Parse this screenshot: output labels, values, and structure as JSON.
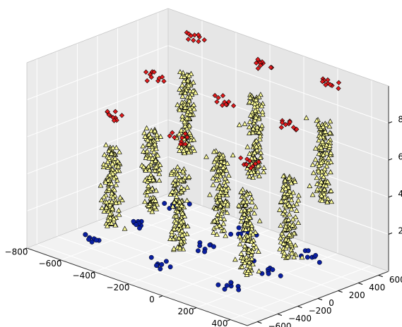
{
  "chart_data": {
    "type": "scatter",
    "projection": "3d",
    "title": "",
    "xlabel": "",
    "ylabel": "",
    "zlabel": "",
    "xlim": [
      -800,
      500
    ],
    "ylim": [
      -700,
      700
    ],
    "zlim": [
      0,
      1000
    ],
    "x_ticks": [
      "−800",
      "−600",
      "−400",
      "−200",
      "0",
      "200",
      "400"
    ],
    "y_ticks": [
      "−600",
      "−400",
      "−200",
      "0",
      "200",
      "400",
      "600"
    ],
    "z_ticks": [
      "200",
      "400",
      "600",
      "800"
    ],
    "x_tick_values": [
      -800,
      -600,
      -400,
      -200,
      0,
      200,
      400
    ],
    "y_tick_values": [
      -600,
      -400,
      -200,
      0,
      200,
      400,
      600
    ],
    "z_tick_values": [
      200,
      400,
      600,
      800
    ],
    "grid": true,
    "series_styles": [
      {
        "marker": "circle",
        "color": "#0a1fa0",
        "stroke": "#000000"
      },
      {
        "marker": "triangle",
        "color": "#ffff99",
        "stroke": "#000000"
      },
      {
        "marker": "diamond",
        "color": "#e41a1c",
        "stroke": "#000000"
      }
    ],
    "clusters": [
      {
        "series": 0,
        "x": -550,
        "y": -450,
        "z": 80,
        "spread_xy": 50,
        "z_span": 20,
        "count": 8
      },
      {
        "series": 0,
        "x": -150,
        "y": -450,
        "z": 80,
        "spread_xy": 50,
        "z_span": 20,
        "count": 8
      },
      {
        "series": 0,
        "x": 250,
        "y": -450,
        "z": 80,
        "spread_xy": 50,
        "z_span": 20,
        "count": 8
      },
      {
        "series": 0,
        "x": -550,
        "y": -50,
        "z": 80,
        "spread_xy": 50,
        "z_span": 20,
        "count": 8
      },
      {
        "series": 0,
        "x": -150,
        "y": -50,
        "z": 80,
        "spread_xy": 50,
        "z_span": 20,
        "count": 8
      },
      {
        "series": 0,
        "x": 250,
        "y": -50,
        "z": 80,
        "spread_xy": 50,
        "z_span": 20,
        "count": 8
      },
      {
        "series": 0,
        "x": -550,
        "y": 350,
        "z": 80,
        "spread_xy": 50,
        "z_span": 20,
        "count": 8
      },
      {
        "series": 0,
        "x": -150,
        "y": 350,
        "z": 80,
        "spread_xy": 50,
        "z_span": 20,
        "count": 8
      },
      {
        "series": 0,
        "x": 250,
        "y": 350,
        "z": 80,
        "spread_xy": 50,
        "z_span": 20,
        "count": 8
      },
      {
        "series": 1,
        "x": -550,
        "y": -280,
        "z": 330,
        "spread_xy": 35,
        "z_span": 220,
        "count": 130
      },
      {
        "series": 1,
        "x": -150,
        "y": -280,
        "z": 330,
        "spread_xy": 35,
        "z_span": 220,
        "count": 130
      },
      {
        "series": 1,
        "x": 250,
        "y": -280,
        "z": 330,
        "spread_xy": 35,
        "z_span": 220,
        "count": 130
      },
      {
        "series": 1,
        "x": -550,
        "y": 120,
        "z": 330,
        "spread_xy": 35,
        "z_span": 220,
        "count": 130
      },
      {
        "series": 1,
        "x": -150,
        "y": 120,
        "z": 330,
        "spread_xy": 35,
        "z_span": 220,
        "count": 130
      },
      {
        "series": 1,
        "x": 250,
        "y": 120,
        "z": 330,
        "spread_xy": 35,
        "z_span": 220,
        "count": 130
      },
      {
        "series": 1,
        "x": -550,
        "y": 470,
        "z": 560,
        "spread_xy": 35,
        "z_span": 220,
        "count": 130
      },
      {
        "series": 1,
        "x": -150,
        "y": 470,
        "z": 560,
        "spread_xy": 35,
        "z_span": 220,
        "count": 130
      },
      {
        "series": 1,
        "x": 250,
        "y": 470,
        "z": 560,
        "spread_xy": 35,
        "z_span": 220,
        "count": 130
      },
      {
        "series": 2,
        "x": -550,
        "y": -250,
        "z": 700,
        "spread_xy": 45,
        "z_span": 25,
        "count": 10
      },
      {
        "series": 2,
        "x": -150,
        "y": -250,
        "z": 700,
        "spread_xy": 45,
        "z_span": 25,
        "count": 10
      },
      {
        "series": 2,
        "x": 250,
        "y": -250,
        "z": 700,
        "spread_xy": 45,
        "z_span": 25,
        "count": 10
      },
      {
        "series": 2,
        "x": -550,
        "y": 150,
        "z": 820,
        "spread_xy": 45,
        "z_span": 25,
        "count": 10
      },
      {
        "series": 2,
        "x": -150,
        "y": 150,
        "z": 820,
        "spread_xy": 45,
        "z_span": 25,
        "count": 10
      },
      {
        "series": 2,
        "x": 250,
        "y": 150,
        "z": 820,
        "spread_xy": 45,
        "z_span": 25,
        "count": 10
      },
      {
        "series": 2,
        "x": -550,
        "y": 550,
        "z": 950,
        "spread_xy": 45,
        "z_span": 25,
        "count": 10
      },
      {
        "series": 2,
        "x": -150,
        "y": 550,
        "z": 950,
        "spread_xy": 45,
        "z_span": 25,
        "count": 10
      },
      {
        "series": 2,
        "x": 250,
        "y": 550,
        "z": 950,
        "spread_xy": 45,
        "z_span": 25,
        "count": 10
      }
    ]
  }
}
